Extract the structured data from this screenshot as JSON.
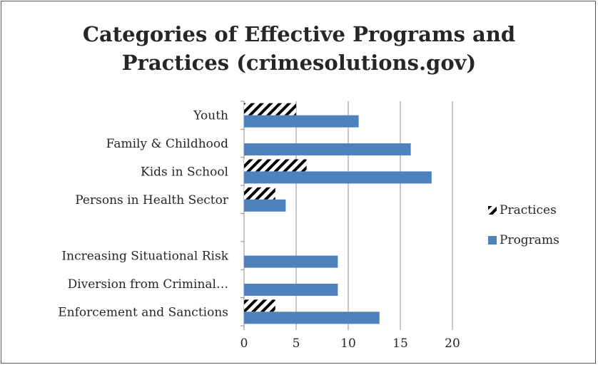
{
  "chart_data": {
    "type": "bar",
    "orientation": "horizontal",
    "title_line1": "Categories of Effective Programs and",
    "title_line2": "Practices (crimesolutions.gov)",
    "categories": [
      "Youth",
      "Family & Childhood",
      "Kids in School",
      "Persons in Health Sector",
      "",
      "Increasing Situational Risk",
      "Diversion from Criminal…",
      "Enforcement and Sanctions"
    ],
    "series": [
      {
        "name": "Practices",
        "values": [
          5,
          0,
          6,
          3,
          0,
          0,
          0,
          3
        ],
        "color": "#000000",
        "pattern": "wide-downward-diagonal"
      },
      {
        "name": "Programs",
        "values": [
          11,
          16,
          18,
          4,
          0,
          9,
          9,
          13
        ],
        "color": "#4f81bd"
      }
    ],
    "xlim": [
      0,
      20
    ],
    "xticks": [
      "0",
      "5",
      "10",
      "15",
      "20"
    ],
    "grid": true,
    "legend_position": "right"
  }
}
